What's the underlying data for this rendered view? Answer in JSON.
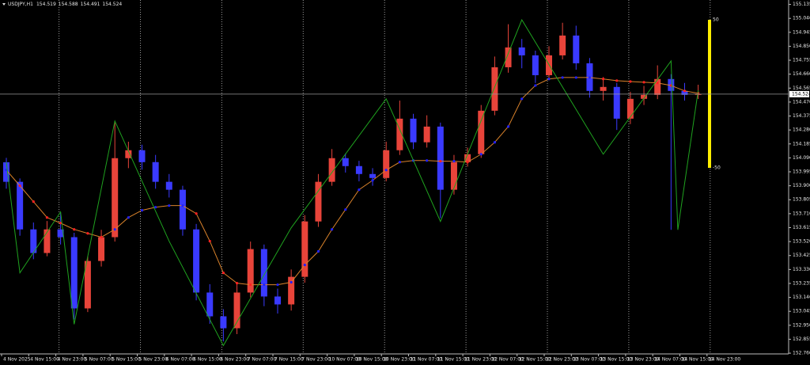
{
  "chart_data": {
    "type": "candlestick",
    "title": "USDJPY,H1",
    "up_color": "#e8443a",
    "down_color": "#3a3aff",
    "grid": true,
    "ylim": [
      152.755,
      155.165
    ],
    "yticks": [
      155.135,
      {
        "value": 155.04,
        "label": "155.040"
      },
      154.945,
      {
        "value": 154.85,
        "label": "154.850"
      },
      154.755,
      {
        "value": 154.66,
        "label": "154.660"
      },
      154.565,
      {
        "value": 154.47,
        "label": "154.470"
      },
      154.375,
      {
        "value": 154.28,
        "label": "154.280"
      },
      154.185,
      {
        "value": 154.09,
        "label": "154.090"
      },
      153.995,
      {
        "value": 153.9,
        "label": "153.900"
      },
      153.805,
      {
        "value": 153.71,
        "label": "153.710"
      },
      153.615,
      {
        "value": 153.52,
        "label": "153.520"
      },
      153.425,
      {
        "value": 153.33,
        "label": "153.330"
      },
      153.235,
      {
        "value": 153.14,
        "label": "153.140"
      },
      153.045,
      {
        "value": 152.95,
        "label": "152.950"
      },
      152.855,
      {
        "value": 152.76,
        "label": "152.760"
      }
    ],
    "x_labels": [
      "4 Nov 2025",
      "4 Nov 15:00",
      "4 Nov 23:00",
      "5 Nov 07:00",
      "5 Nov 15:00",
      "5 Nov 23:00",
      "6 Nov 07:00",
      "6 Nov 15:00",
      "6 Nov 23:00",
      "7 Nov 07:00",
      "7 Nov 15:00",
      "7 Nov 23:00",
      "10 Nov 07:00",
      "10 Nov 15:00",
      "10 Nov 23:00",
      "11 Nov 07:00",
      "11 Nov 15:00",
      "11 Nov 23:00",
      "12 Nov 07:00",
      "12 Nov 15:00",
      "12 Nov 23:00",
      "13 Nov 07:00",
      "13 Nov 15:00",
      "13 Nov 23:00",
      "14 Nov 07:00",
      "14 Nov 15:00",
      "14 Nov 23:00"
    ],
    "open": [
      154.06,
      153.927,
      153.603,
      153.442,
      153.603,
      153.55,
      153.065,
      153.388,
      153.55,
      154.088,
      154.142,
      154.061,
      153.927,
      153.873,
      153.603,
      153.173,
      153.011,
      152.93,
      153.173,
      153.469,
      153.146,
      153.092,
      153.28,
      153.657,
      153.927,
      154.088,
      154.034,
      153.98,
      153.953,
      154.142,
      154.357,
      154.196,
      154.303,
      153.873,
      154.061,
      154.115,
      154.411,
      154.707,
      154.842,
      154.788,
      154.653,
      154.788,
      154.923,
      154.734,
      154.546,
      154.573,
      154.357,
      154.492,
      154.519,
      154.627,
      154.546,
      154.519
    ],
    "high": [
      154.09,
      153.95,
      153.65,
      153.66,
      153.72,
      153.58,
      153.42,
      153.6,
      154.33,
      154.2,
      154.18,
      154.11,
      153.98,
      153.9,
      153.64,
      153.23,
      153.06,
      153.23,
      153.52,
      153.5,
      153.2,
      153.33,
      153.7,
      153.98,
      154.15,
      154.12,
      154.07,
      154.02,
      154.2,
      154.48,
      154.39,
      154.38,
      154.33,
      154.11,
      154.16,
      154.45,
      154.78,
      155.0,
      154.9,
      154.82,
      154.85,
      155.01,
      154.99,
      154.77,
      154.64,
      154.6,
      154.54,
      154.58,
      154.72,
      154.66,
      154.6,
      154.588
    ],
    "low": [
      153.88,
      153.56,
      153.4,
      153.42,
      153.5,
      152.99,
      153.04,
      153.35,
      153.52,
      154.02,
      154.01,
      153.88,
      153.82,
      153.56,
      153.12,
      152.96,
      152.84,
      152.89,
      153.14,
      153.08,
      153.03,
      153.05,
      153.24,
      153.62,
      153.9,
      153.99,
      153.93,
      153.9,
      153.93,
      154.11,
      154.15,
      154.16,
      153.68,
      153.84,
      154.03,
      154.09,
      154.38,
      154.67,
      154.7,
      154.6,
      154.62,
      154.76,
      154.69,
      154.5,
      154.48,
      154.28,
      154.32,
      154.45,
      154.49,
      153.6,
      154.48,
      154.491
    ],
    "close": [
      153.927,
      153.603,
      153.442,
      153.603,
      153.55,
      153.065,
      153.388,
      153.55,
      154.088,
      154.142,
      154.061,
      153.927,
      153.873,
      153.603,
      153.173,
      153.011,
      152.93,
      153.173,
      153.469,
      153.146,
      153.092,
      153.28,
      153.657,
      153.927,
      154.088,
      154.034,
      153.98,
      153.953,
      154.142,
      154.357,
      154.196,
      154.303,
      153.873,
      154.061,
      154.115,
      154.411,
      154.707,
      154.842,
      154.788,
      154.653,
      154.788,
      154.923,
      154.734,
      154.546,
      154.573,
      154.357,
      154.492,
      154.519,
      154.627,
      154.546,
      154.519,
      154.524
    ],
    "ma": {
      "color": "#d9822b",
      "values": [
        154.007,
        153.9,
        153.792,
        153.684,
        153.646,
        153.603,
        153.576,
        153.55,
        153.603,
        153.684,
        153.733,
        153.754,
        153.765,
        153.765,
        153.711,
        153.523,
        153.307,
        153.237,
        153.226,
        153.226,
        153.226,
        153.243,
        153.361,
        153.453,
        153.603,
        153.738,
        153.873,
        153.937,
        154.007,
        154.061,
        154.072,
        154.072,
        154.067,
        154.067,
        154.061,
        154.115,
        154.196,
        154.303,
        154.492,
        154.583,
        154.627,
        154.637,
        154.637,
        154.637,
        154.627,
        154.616,
        154.61,
        154.605,
        154.6,
        154.583,
        154.546,
        154.53
      ]
    },
    "zigzag": {
      "color": "#1fa31f",
      "x": [
        0,
        1,
        4,
        5,
        8,
        12,
        16,
        21,
        28,
        32,
        38,
        44,
        49,
        49.5,
        51
      ],
      "values": [
        154.06,
        153.307,
        153.722,
        152.957,
        154.341,
        153.523,
        152.812,
        153.614,
        154.492,
        153.657,
        155.03,
        154.115,
        154.75,
        153.6,
        154.55
      ]
    },
    "level_bar": {
      "color": "#ffee00",
      "values": [
        50,
        -50
      ]
    }
  }
}
